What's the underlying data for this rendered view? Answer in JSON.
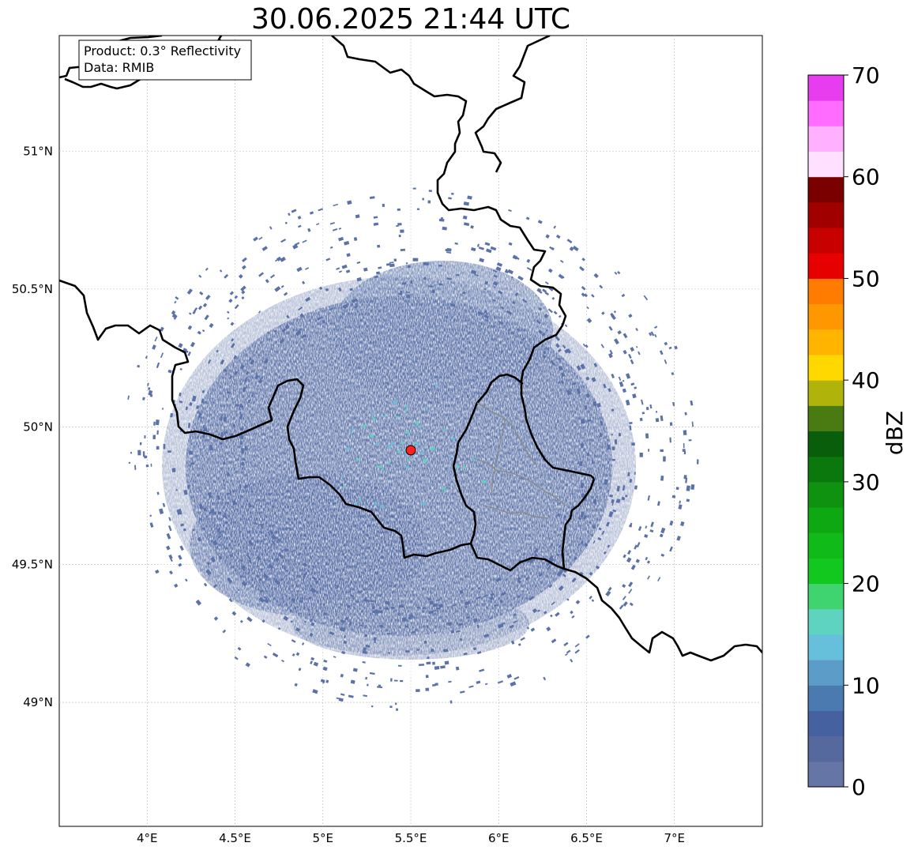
{
  "title": "30.06.2025 21:44 UTC",
  "info_box": {
    "line1": "Product: 0.3° Reflectivity",
    "line2": "Data: RMIB"
  },
  "map": {
    "lon_range": [
      3.5,
      7.5
    ],
    "lat_range": [
      48.55,
      51.42
    ],
    "lon_ticks": [
      {
        "value": 4.0,
        "label": "4°E"
      },
      {
        "value": 4.5,
        "label": "4.5°E"
      },
      {
        "value": 5.0,
        "label": "5°E"
      },
      {
        "value": 5.5,
        "label": "5.5°E"
      },
      {
        "value": 6.0,
        "label": "6°E"
      },
      {
        "value": 6.5,
        "label": "6.5°E"
      },
      {
        "value": 7.0,
        "label": "7°E"
      }
    ],
    "lat_ticks": [
      {
        "value": 49.0,
        "label": "49°N"
      },
      {
        "value": 49.5,
        "label": "49.5°N"
      },
      {
        "value": 50.0,
        "label": "50°N"
      },
      {
        "value": 50.5,
        "label": "50.5°N"
      },
      {
        "value": 51.0,
        "label": "51°N"
      }
    ],
    "grid": true,
    "radar_site": {
      "lon": 5.5,
      "lat": 49.915,
      "color": "#ff2020"
    },
    "echo_color": "#5a72a8"
  },
  "colorbar": {
    "label": "dBZ",
    "min": 0,
    "max": 70,
    "ticks": [
      {
        "value": 0,
        "label": "0"
      },
      {
        "value": 10,
        "label": "10"
      },
      {
        "value": 20,
        "label": "20"
      },
      {
        "value": 30,
        "label": "30"
      },
      {
        "value": 40,
        "label": "40"
      },
      {
        "value": 50,
        "label": "50"
      },
      {
        "value": 60,
        "label": "60"
      },
      {
        "value": 70,
        "label": "70"
      }
    ],
    "colors": [
      "#6475a6",
      "#56699e",
      "#4661a0",
      "#4a7ab0",
      "#5b9dc8",
      "#66c0dc",
      "#5ed4c0",
      "#3fd470",
      "#12c81e",
      "#10ba18",
      "#0ea812",
      "#0e9210",
      "#0a780c",
      "#085e0a",
      "#4a7a12",
      "#b0b40a",
      "#ffd800",
      "#ffb400",
      "#ff9800",
      "#ff7c00",
      "#e60000",
      "#c80000",
      "#a00000",
      "#7a0000",
      "#ffe0ff",
      "#ffb0ff",
      "#ff6cff",
      "#e83cf0"
    ]
  }
}
